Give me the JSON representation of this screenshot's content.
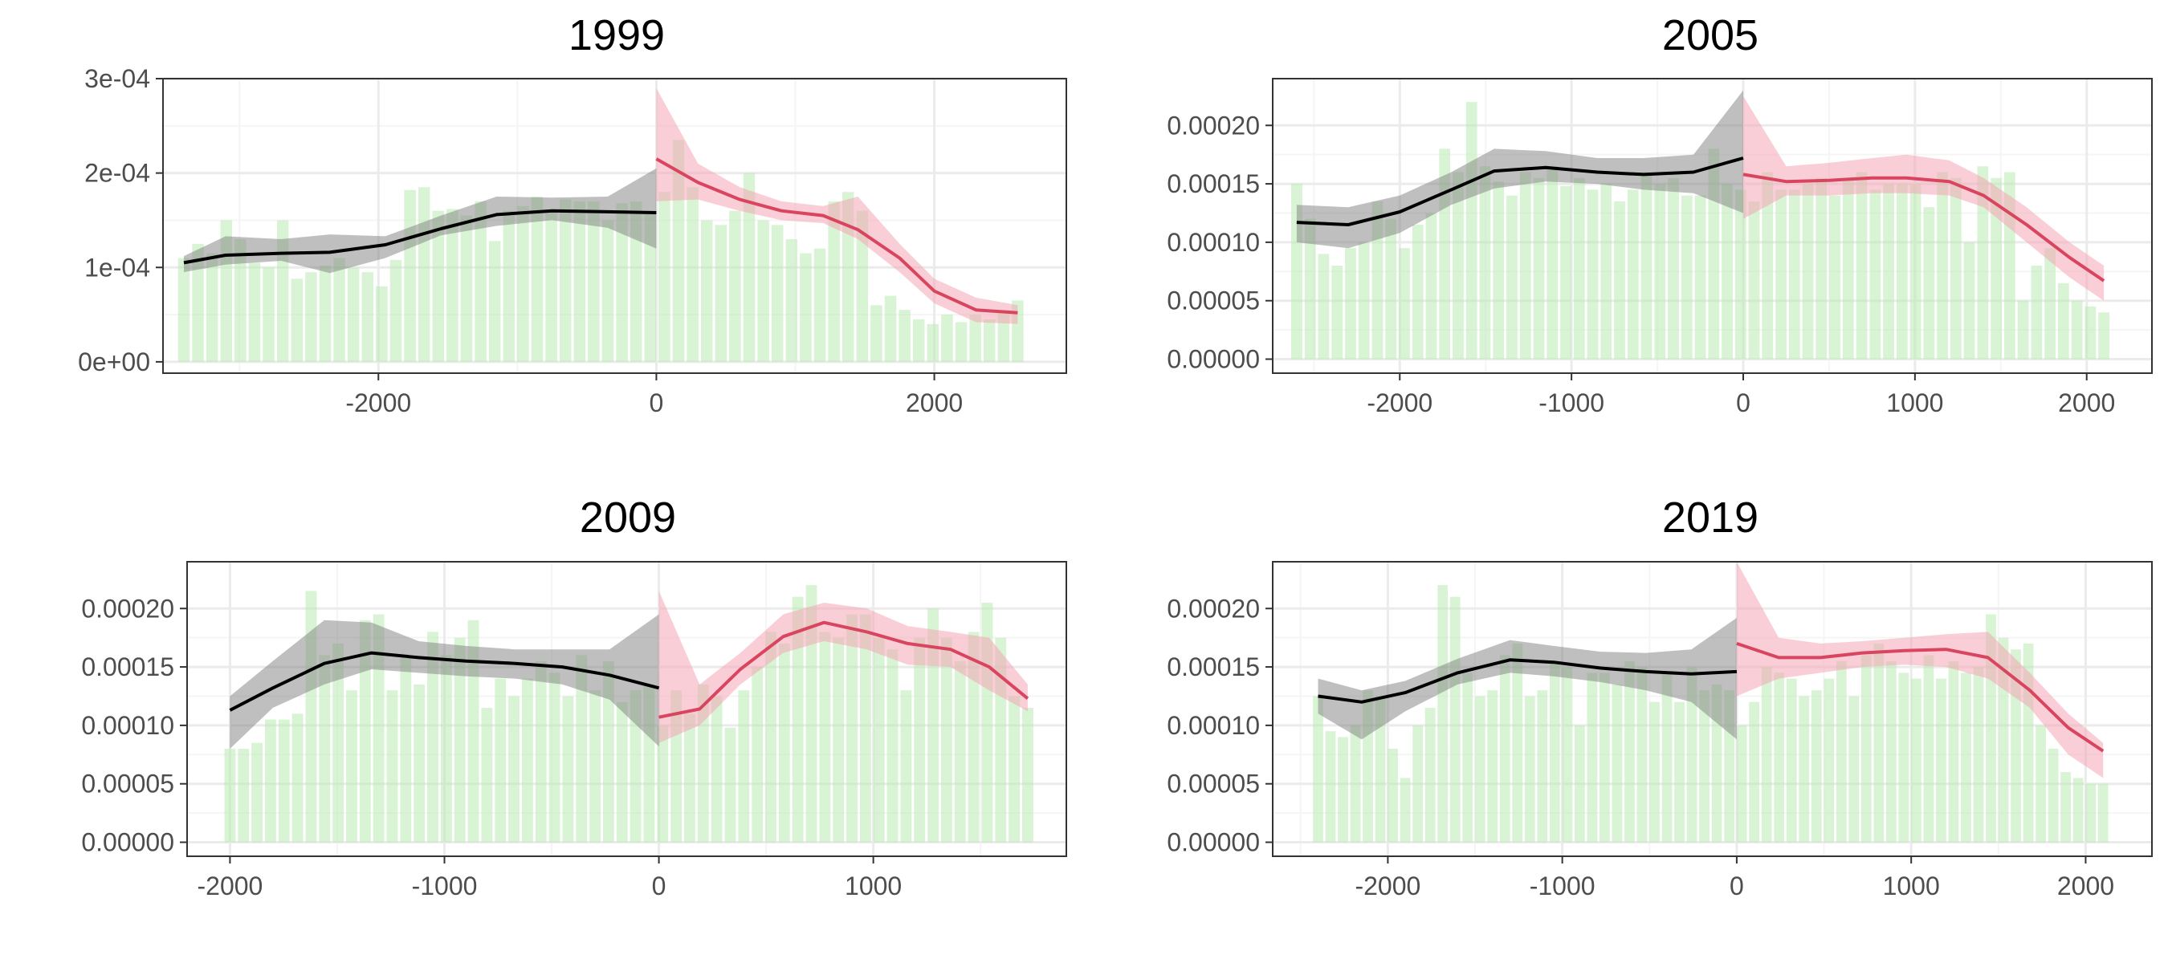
{
  "colors": {
    "bars": "#b8ebb0",
    "pre_line": "#000000",
    "pre_band": "#808080",
    "post_line": "#d9455f",
    "post_band": "#f4a6b6",
    "grid_major": "#ebebeb",
    "grid_minor": "#f5f5f5",
    "panel_border": "#333333",
    "tick_label": "#4d4d4d"
  },
  "chart_data": [
    {
      "type": "bar+line",
      "title": "1999",
      "xlabel": "",
      "ylabel": "",
      "grid": true,
      "xlim": [
        -3550,
        2950
      ],
      "ylim": [
        -1.2e-05,
        0.0003
      ],
      "xticks": [
        -2000,
        0,
        2000
      ],
      "xtick_labels": [
        "-2000",
        "0",
        "2000"
      ],
      "yticks": [
        0,
        0.0001,
        0.0002,
        0.0003
      ],
      "ytick_labels": [
        "0e+00",
        "1e-04",
        "2e-04",
        "3e-04"
      ],
      "bar_range": [
        -3400,
        2600
      ],
      "bars": [
        0.00011,
        0.000125,
        0.000115,
        0.00015,
        0.00013,
        0.000105,
        0.0001,
        0.00015,
        8.8e-05,
        9.5e-05,
        0.000102,
        0.00011,
        0.0001,
        9.5e-05,
        8e-05,
        0.000108,
        0.000182,
        0.000185,
        0.00016,
        0.000162,
        0.000155,
        0.00017,
        0.000128,
        0.00016,
        0.000165,
        0.000175,
        0.00016,
        0.000172,
        0.00017,
        0.00017,
        0.00015,
        0.000168,
        0.00017,
        0.00016,
        0.00018,
        0.000235,
        0.000185,
        0.00015,
        0.000145,
        0.00016,
        0.0002,
        0.00015,
        0.000145,
        0.00013,
        0.000115,
        0.00012,
        0.00017,
        0.00018,
        0.00016,
        6e-05,
        7e-05,
        5.5e-05,
        4.5e-05,
        4e-05,
        5e-05,
        4.2e-05,
        5e-05,
        4.5e-05,
        5.5e-05,
        6.5e-05
      ],
      "pre": {
        "x": [
          -3400,
          -3100,
          -2700,
          -2350,
          -1950,
          -1550,
          -1150,
          -750,
          -350,
          0
        ],
        "y": [
          0.000105,
          0.000113,
          0.000115,
          0.000116,
          0.000124,
          0.000141,
          0.000156,
          0.00016,
          0.000159,
          0.000158
        ],
        "lower": [
          9.5e-05,
          0.000103,
          0.000107,
          9.4e-05,
          0.00011,
          0.000134,
          0.000144,
          0.00015,
          0.000142,
          0.00012
        ],
        "upper": [
          0.000112,
          0.000133,
          0.00013,
          0.000135,
          0.000133,
          0.000155,
          0.000175,
          0.000174,
          0.000175,
          0.000205
        ]
      },
      "post": {
        "x": [
          0,
          300,
          600,
          900,
          1200,
          1450,
          1750,
          2000,
          2300,
          2600
        ],
        "y": [
          0.000215,
          0.00019,
          0.000172,
          0.00016,
          0.000155,
          0.00014,
          0.00011,
          7.5e-05,
          5.5e-05,
          5.2e-05
        ],
        "lower": [
          0.00017,
          0.000172,
          0.00016,
          0.00015,
          0.000147,
          0.00013,
          9.5e-05,
          6.2e-05,
          4.2e-05,
          4e-05
        ],
        "upper": [
          0.00029,
          0.00021,
          0.000185,
          0.00017,
          0.000165,
          0.000175,
          0.000125,
          8.8e-05,
          6.8e-05,
          6e-05
        ]
      }
    },
    {
      "type": "bar+line",
      "title": "2005",
      "xlabel": "",
      "ylabel": "",
      "grid": true,
      "xlim": [
        -2740,
        2380
      ],
      "ylim": [
        -1.2e-05,
        0.00024
      ],
      "xticks": [
        -2000,
        -1000,
        0,
        1000,
        2000
      ],
      "xtick_labels": [
        "-2000",
        "-1000",
        "0",
        "1000",
        "2000"
      ],
      "yticks": [
        0,
        5e-05,
        0.0001,
        0.00015,
        0.0002
      ],
      "ytick_labels": [
        "0.00000",
        "0.00005",
        "0.00010",
        "0.00015",
        "0.00020"
      ],
      "bar_range": [
        -2600,
        2100
      ],
      "bars": [
        0.00015,
        0.00012,
        9e-05,
        8e-05,
        9.5e-05,
        0.0001,
        0.000135,
        0.00012,
        9.5e-05,
        0.000115,
        0.000125,
        0.00018,
        0.00016,
        0.00022,
        0.000165,
        0.000152,
        0.00014,
        0.00016,
        0.000155,
        0.000165,
        0.000148,
        0.000155,
        0.000145,
        0.00015,
        0.000135,
        0.000145,
        0.00016,
        0.00015,
        0.000155,
        0.00014,
        0.00014,
        0.00018,
        0.00015,
        0.000145,
        0.000135,
        0.00016,
        0.000145,
        0.000145,
        0.00015,
        0.000155,
        0.00014,
        0.000155,
        0.00016,
        0.000145,
        0.00015,
        0.00015,
        0.00015,
        0.00013,
        0.00016,
        0.000155,
        0.0001,
        0.000165,
        0.000155,
        0.00016,
        5e-05,
        8e-05,
        9.5e-05,
        6.5e-05,
        5e-05,
        4.5e-05,
        4e-05
      ],
      "pre": {
        "x": [
          -2600,
          -2300,
          -2000,
          -1700,
          -1450,
          -1150,
          -850,
          -580,
          -290,
          0
        ],
        "y": [
          0.000117,
          0.000115,
          0.000126,
          0.000145,
          0.000161,
          0.000164,
          0.00016,
          0.000158,
          0.00016,
          0.000172
        ],
        "lower": [
          0.0001,
          9.5e-05,
          0.000108,
          0.000132,
          0.000146,
          0.000152,
          0.00015,
          0.000145,
          0.000142,
          0.000125
        ],
        "upper": [
          0.000132,
          0.00013,
          0.00014,
          0.00016,
          0.00018,
          0.000178,
          0.000172,
          0.000172,
          0.000175,
          0.00023
        ]
      },
      "post": {
        "x": [
          0,
          250,
          500,
          750,
          950,
          1200,
          1400,
          1650,
          1900,
          2100
        ],
        "y": [
          0.000158,
          0.000152,
          0.000153,
          0.000155,
          0.000155,
          0.000152,
          0.00014,
          0.000115,
          8.7e-05,
          6.7e-05
        ],
        "lower": [
          0.00012,
          0.00014,
          0.00014,
          0.000142,
          0.000142,
          0.00014,
          0.00013,
          0.0001,
          7e-05,
          5e-05
        ],
        "upper": [
          0.000225,
          0.000165,
          0.000168,
          0.000172,
          0.000175,
          0.00017,
          0.000155,
          0.00013,
          0.0001,
          8e-05
        ]
      }
    },
    {
      "type": "bar+line",
      "title": "2009",
      "xlabel": "",
      "ylabel": "",
      "grid": true,
      "xlim": [
        -2200,
        1900
      ],
      "ylim": [
        -1.2e-05,
        0.00024
      ],
      "xticks": [
        -2000,
        -1000,
        0,
        1000
      ],
      "xtick_labels": [
        "-2000",
        "-1000",
        "0",
        "1000"
      ],
      "yticks": [
        0,
        5e-05,
        0.0001,
        0.00015,
        0.0002
      ],
      "ytick_labels": [
        "0.00000",
        "0.00005",
        "0.00010",
        "0.00015",
        "0.00020"
      ],
      "bar_range": [
        -2000,
        1720
      ],
      "bars": [
        8e-05,
        8e-05,
        8.5e-05,
        0.000105,
        0.000105,
        0.00011,
        0.000215,
        0.00016,
        0.00017,
        0.00013,
        0.00019,
        0.000195,
        0.00013,
        0.00016,
        0.000135,
        0.00018,
        0.00016,
        0.000175,
        0.00019,
        0.000115,
        0.00014,
        0.000125,
        0.00014,
        0.000155,
        0.000145,
        0.000125,
        0.00016,
        0.00013,
        0.000155,
        0.00012,
        0.00013,
        0.000135,
        0.0001,
        0.00013,
        0.00011,
        0.000135,
        0.000125,
        9.8e-05,
        0.00013,
        0.00015,
        0.00018,
        0.00017,
        0.00021,
        0.00022,
        0.00018,
        0.000175,
        0.000195,
        0.000195,
        0.000175,
        0.000165,
        0.00013,
        0.000175,
        0.0002,
        0.000175,
        0.000155,
        0.00018,
        0.000205,
        0.000175,
        0.000125,
        0.000115
      ],
      "pre": {
        "x": [
          -2000,
          -1800,
          -1560,
          -1340,
          -1120,
          -900,
          -670,
          -450,
          -230,
          0
        ],
        "y": [
          0.000113,
          0.000132,
          0.000153,
          0.000162,
          0.000158,
          0.000155,
          0.000153,
          0.00015,
          0.000143,
          0.000132
        ],
        "lower": [
          8e-05,
          0.000115,
          0.000135,
          0.000148,
          0.000145,
          0.000142,
          0.00014,
          0.000135,
          0.000122,
          8.2e-05
        ],
        "upper": [
          0.000125,
          0.000155,
          0.00019,
          0.000188,
          0.000172,
          0.000168,
          0.000165,
          0.000165,
          0.000165,
          0.000195
        ]
      },
      "post": {
        "x": [
          0,
          190,
          380,
          580,
          770,
          970,
          1160,
          1360,
          1540,
          1720
        ],
        "y": [
          0.000107,
          0.000114,
          0.000148,
          0.000176,
          0.000188,
          0.00018,
          0.00017,
          0.000165,
          0.00015,
          0.000123
        ],
        "lower": [
          8.5e-05,
          0.0001,
          0.000135,
          0.000162,
          0.000172,
          0.000165,
          0.000152,
          0.00015,
          0.00013,
          0.000112
        ],
        "upper": [
          0.000215,
          0.000135,
          0.000162,
          0.000195,
          0.000205,
          0.0002,
          0.000185,
          0.00018,
          0.000175,
          0.000135
        ]
      }
    },
    {
      "type": "bar+line",
      "title": "2019",
      "xlabel": "",
      "ylabel": "",
      "grid": true,
      "xlim": [
        -2660,
        2380
      ],
      "ylim": [
        -1.2e-05,
        0.00024
      ],
      "xticks": [
        -2000,
        -1000,
        0,
        1000,
        2000
      ],
      "xtick_labels": [
        "-2000",
        "-1000",
        "0",
        "1000",
        "2000"
      ],
      "yticks": [
        0,
        5e-05,
        0.0001,
        0.00015,
        0.0002
      ],
      "ytick_labels": [
        "0.00000",
        "0.00005",
        "0.00010",
        "0.00015",
        "0.00020"
      ],
      "bar_range": [
        -2400,
        2100
      ],
      "bars": [
        0.000125,
        9.5e-05,
        9e-05,
        0.0001,
        0.00013,
        0.000125,
        8e-05,
        5.5e-05,
        0.0001,
        0.000115,
        0.00022,
        0.00021,
        0.000145,
        0.000125,
        0.00013,
        0.00016,
        0.00017,
        0.000125,
        0.00013,
        0.000155,
        0.00015,
        0.0001,
        0.000145,
        0.000145,
        0.000135,
        0.000155,
        0.00015,
        0.00012,
        0.000145,
        0.00012,
        0.00015,
        0.00013,
        0.000135,
        0.00013,
        0.0001,
        0.00012,
        0.00015,
        0.000145,
        0.00014,
        0.000125,
        0.00013,
        0.00014,
        0.000155,
        0.000125,
        0.00016,
        0.00017,
        0.000155,
        0.000145,
        0.00014,
        0.00016,
        0.00014,
        0.000155,
        0.000145,
        0.00015,
        0.000195,
        0.000175,
        0.000165,
        0.00017,
        0.0001,
        8e-05,
        6e-05,
        5.5e-05,
        5e-05,
        5e-05
      ],
      "pre": {
        "x": [
          -2400,
          -2150,
          -1900,
          -1600,
          -1300,
          -1050,
          -780,
          -520,
          -260,
          0
        ],
        "y": [
          0.000125,
          0.00012,
          0.000128,
          0.000145,
          0.000156,
          0.000154,
          0.000149,
          0.000146,
          0.000144,
          0.000146
        ],
        "lower": [
          0.00011,
          8.8e-05,
          0.000112,
          0.000135,
          0.000145,
          0.000142,
          0.000137,
          0.00013,
          0.00012,
          8.8e-05
        ],
        "upper": [
          0.00014,
          0.00013,
          0.000138,
          0.000157,
          0.000173,
          0.000168,
          0.000163,
          0.000162,
          0.000165,
          0.000192
        ]
      },
      "post": {
        "x": [
          0,
          240,
          480,
          720,
          960,
          1200,
          1440,
          1680,
          1900,
          2100
        ],
        "y": [
          0.00017,
          0.000158,
          0.000158,
          0.000162,
          0.000164,
          0.000165,
          0.000158,
          0.00013,
          9.8e-05,
          7.8e-05
        ],
        "lower": [
          0.000125,
          0.00014,
          0.000145,
          0.00015,
          0.000152,
          0.00015,
          0.00014,
          0.000115,
          7.5e-05,
          5.5e-05
        ],
        "upper": [
          0.00024,
          0.000175,
          0.00017,
          0.000172,
          0.000175,
          0.000178,
          0.00018,
          0.000145,
          0.00011,
          8.5e-05
        ]
      }
    }
  ]
}
